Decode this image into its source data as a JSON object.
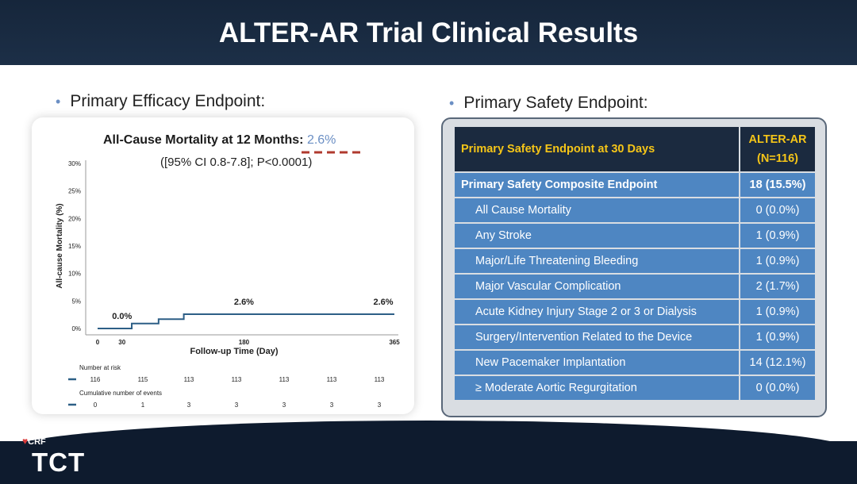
{
  "header": {
    "title": "ALTER-AR Trial Clinical Results"
  },
  "left": {
    "heading": "Primary Efficacy Endpoint:",
    "chart_title_main": "All-Cause Mortality at 12 Months",
    "chart_title_colon": ": ",
    "chart_title_value": "2.6%",
    "chart_ci": "([95% CI 0.8-7.8]; P<0.0001)"
  },
  "right": {
    "heading": "Primary Safety Endpoint:",
    "table": {
      "header_label": "Primary Safety Endpoint at 30 Days",
      "header_col_line1": "ALTER-AR",
      "header_col_line2": "(N=116)",
      "composite_label": "Primary Safety Composite Endpoint",
      "composite_value": "18 (15.5%)",
      "rows": [
        {
          "label": "All Cause Mortality",
          "value": "0 (0.0%)"
        },
        {
          "label": "Any Stroke",
          "value": "1 (0.9%)"
        },
        {
          "label": "Major/Life Threatening Bleeding",
          "value": "1 (0.9%)"
        },
        {
          "label": "Major Vascular Complication",
          "value": "2 (1.7%)"
        },
        {
          "label": "Acute Kidney Injury Stage 2 or 3 or Dialysis",
          "value": "1 (0.9%)"
        },
        {
          "label": "Surgery/Intervention Related to the Device",
          "value": "1 (0.9%)"
        },
        {
          "label": "New Pacemaker Implantation",
          "value": "14 (12.1%)"
        },
        {
          "label": "≥ Moderate Aortic Regurgitation",
          "value": "0 (0.0%)"
        }
      ]
    }
  },
  "footer": {
    "crf": "CRF",
    "tct": "TCT"
  },
  "chart_data": {
    "type": "line",
    "title": "All-Cause Mortality at 12 Months: 2.6%",
    "subtitle": "([95% CI 0.8-7.8]; P<0.0001)",
    "xlabel": "Follow-up Time (Day)",
    "ylabel": "All-cause Mortality (%)",
    "xlim": [
      0,
      365
    ],
    "ylim": [
      0,
      30
    ],
    "x_ticks": [
      "0",
      "30",
      "180",
      "365"
    ],
    "x_tick_values": [
      0,
      30,
      180,
      365
    ],
    "y_ticks": [
      "0%",
      "5%",
      "10%",
      "15%",
      "20%",
      "25%",
      "30%"
    ],
    "y_tick_values": [
      0,
      5,
      10,
      15,
      20,
      25,
      30
    ],
    "series": [
      {
        "color": "#2d5f86",
        "steps": [
          [
            0,
            0.0
          ],
          [
            42,
            0.0
          ],
          [
            42,
            0.9
          ],
          [
            75,
            0.9
          ],
          [
            75,
            1.7
          ],
          [
            106,
            1.7
          ],
          [
            106,
            2.6
          ],
          [
            365,
            2.6
          ]
        ]
      }
    ],
    "annotations": [
      {
        "text": "0.0%",
        "x": 30,
        "y": 0.0
      },
      {
        "text": "2.6%",
        "x": 180,
        "y": 2.6
      },
      {
        "text": "2.6%",
        "x": 365,
        "y": 2.6
      }
    ],
    "risk_table": {
      "at_risk_label": "Number at risk",
      "at_risk": [
        "116",
        "115",
        "113",
        "113",
        "113",
        "113",
        "113"
      ],
      "events_label": "Cumulative number of events",
      "events": [
        "0",
        "1",
        "3",
        "3",
        "3",
        "3",
        "3"
      ]
    }
  }
}
